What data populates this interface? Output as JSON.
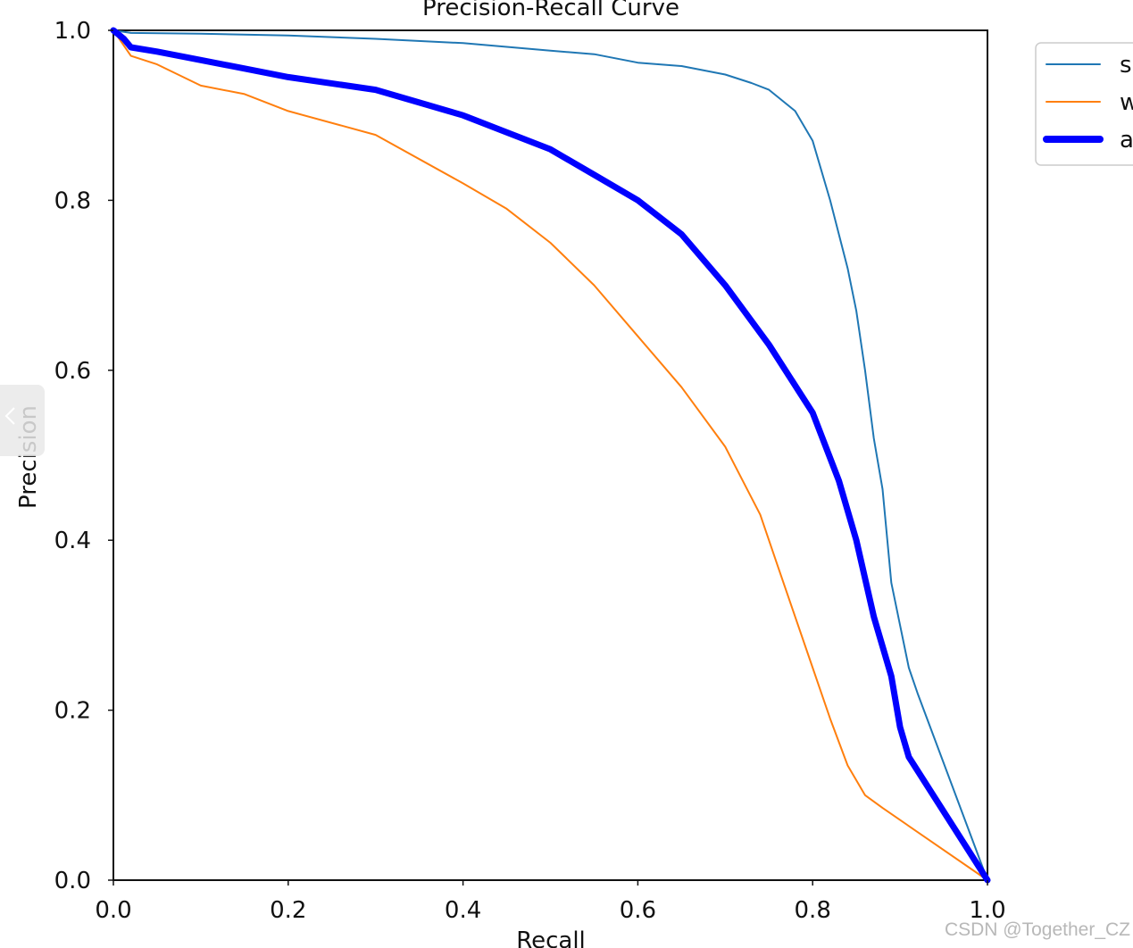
{
  "watermark": "CSDN @Together_CZ",
  "chart_data": {
    "type": "line",
    "title": "Precision-Recall Curve",
    "xlabel": "Recall",
    "ylabel": "Precision",
    "xlim": [
      0,
      1
    ],
    "ylim": [
      0,
      1
    ],
    "xticks": [
      "0.0",
      "0.2",
      "0.4",
      "0.6",
      "0.8",
      "1.0"
    ],
    "yticks": [
      "0.0",
      "0.2",
      "0.4",
      "0.6",
      "0.8",
      "1.0"
    ],
    "grid": false,
    "legend_position": "outside top-right (clipped)",
    "series": [
      {
        "name": "s",
        "color": "#1f77b4",
        "line_style": "thin",
        "x": [
          0.0,
          0.02,
          0.1,
          0.2,
          0.3,
          0.4,
          0.5,
          0.55,
          0.6,
          0.65,
          0.7,
          0.73,
          0.75,
          0.78,
          0.8,
          0.82,
          0.84,
          0.85,
          0.86,
          0.87,
          0.88,
          0.89,
          0.9,
          0.91,
          0.92,
          1.0
        ],
        "y": [
          1.0,
          0.997,
          0.996,
          0.994,
          0.99,
          0.985,
          0.976,
          0.972,
          0.962,
          0.958,
          0.948,
          0.938,
          0.93,
          0.905,
          0.87,
          0.8,
          0.72,
          0.67,
          0.6,
          0.52,
          0.46,
          0.35,
          0.3,
          0.25,
          0.22,
          0.0
        ]
      },
      {
        "name": "w",
        "color": "#ff7f0e",
        "line_style": "thin",
        "x": [
          0.0,
          0.02,
          0.05,
          0.1,
          0.15,
          0.2,
          0.3,
          0.4,
          0.45,
          0.5,
          0.55,
          0.6,
          0.65,
          0.7,
          0.72,
          0.74,
          0.76,
          0.78,
          0.8,
          0.82,
          0.84,
          0.86,
          0.88,
          1.0
        ],
        "y": [
          1.0,
          0.97,
          0.96,
          0.935,
          0.925,
          0.905,
          0.877,
          0.82,
          0.79,
          0.75,
          0.7,
          0.64,
          0.58,
          0.51,
          0.47,
          0.43,
          0.37,
          0.31,
          0.25,
          0.19,
          0.135,
          0.1,
          0.085,
          0.0
        ]
      },
      {
        "name": "a",
        "color": "#0000ff",
        "line_style": "thick",
        "x": [
          0.0,
          0.012,
          0.02,
          0.05,
          0.1,
          0.15,
          0.2,
          0.3,
          0.35,
          0.4,
          0.45,
          0.5,
          0.55,
          0.6,
          0.65,
          0.7,
          0.75,
          0.8,
          0.83,
          0.85,
          0.87,
          0.89,
          0.9,
          0.91,
          1.0
        ],
        "y": [
          1.0,
          0.99,
          0.98,
          0.975,
          0.965,
          0.955,
          0.945,
          0.93,
          0.915,
          0.9,
          0.88,
          0.86,
          0.83,
          0.8,
          0.76,
          0.7,
          0.63,
          0.55,
          0.47,
          0.4,
          0.31,
          0.24,
          0.18,
          0.145,
          0.0
        ]
      }
    ]
  }
}
